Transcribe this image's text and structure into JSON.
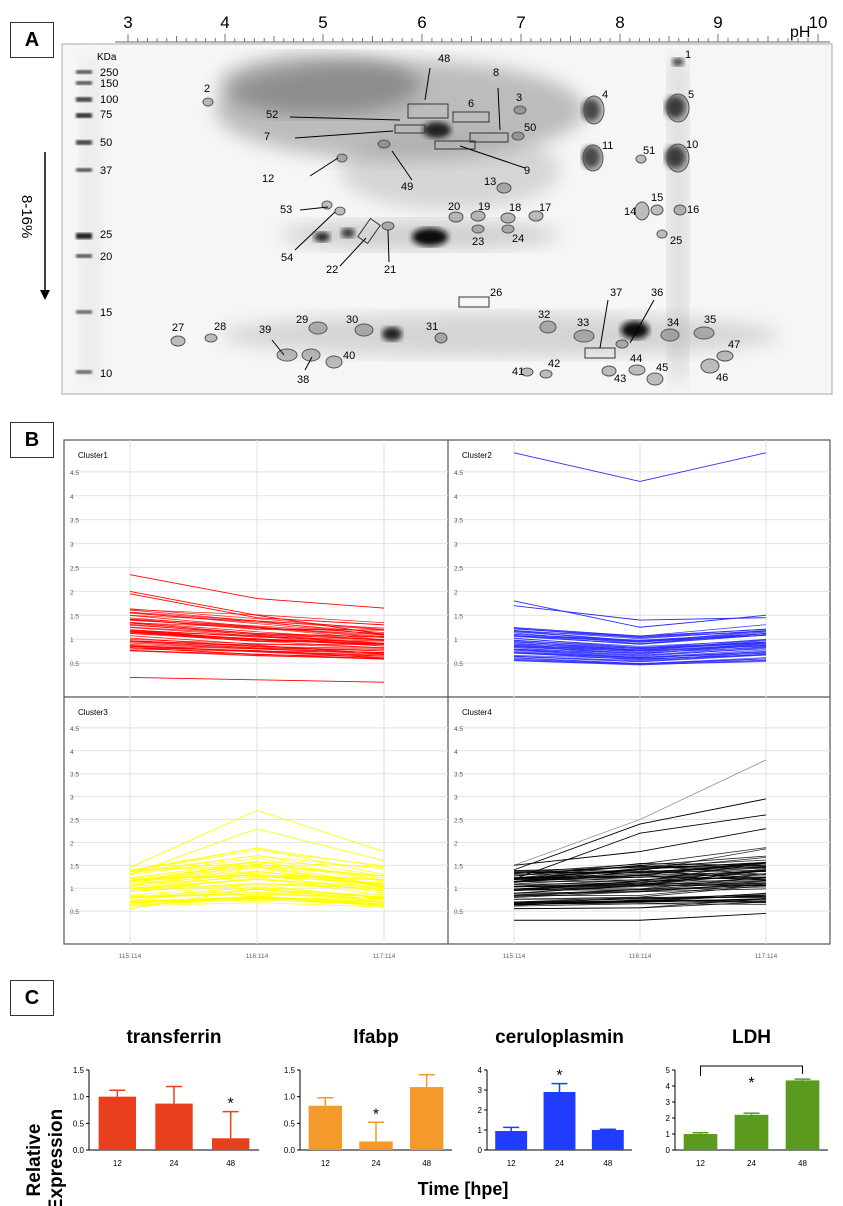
{
  "panels": {
    "a": "A",
    "b": "B",
    "c": "C"
  },
  "gel": {
    "ph_label": "pH",
    "ph_ticks": [
      "3",
      "4",
      "5",
      "6",
      "7",
      "8",
      "9",
      "10"
    ],
    "kda_label": "KDa",
    "kda_markers": [
      "250",
      "150",
      "100",
      "75",
      "50",
      "37",
      "25",
      "20",
      "15",
      "10"
    ],
    "gradient_label": "8-16%",
    "spot_labels": [
      "1",
      "2",
      "3",
      "4",
      "5",
      "6",
      "7",
      "8",
      "9",
      "10",
      "11",
      "12",
      "13",
      "14",
      "15",
      "16",
      "17",
      "18",
      "19",
      "20",
      "21",
      "22",
      "23",
      "24",
      "25",
      "26",
      "27",
      "28",
      "29",
      "30",
      "31",
      "32",
      "33",
      "34",
      "35",
      "36",
      "37",
      "38",
      "39",
      "40",
      "41",
      "42",
      "43",
      "44",
      "45",
      "46",
      "47",
      "48",
      "49",
      "50",
      "51",
      "52",
      "53",
      "54"
    ]
  },
  "clusters": {
    "names": [
      "Cluster1",
      "Cluster2",
      "Cluster3",
      "Cluster4"
    ],
    "y_ticks": [
      "0.5",
      "1",
      "1.5",
      "2",
      "2.5",
      "3",
      "3.5",
      "4",
      "4.5"
    ],
    "x_ticks": [
      "115:114",
      "116:114",
      "117:114"
    ],
    "colors": [
      "#ff0000",
      "#2b2bff",
      "#ffff00",
      "#000000"
    ]
  },
  "chart_data": [
    {
      "type": "bar",
      "title": "transferrin",
      "categories": [
        "12",
        "24",
        "48"
      ],
      "values": [
        1.0,
        0.87,
        0.22
      ],
      "error": [
        0.12,
        0.32,
        0.5
      ],
      "ylim": [
        0,
        1.5
      ],
      "yticks": [
        "0.0",
        "0.5",
        "1.0",
        "1.5"
      ],
      "significant": [
        "",
        "",
        "*"
      ],
      "color": "#e8401c"
    },
    {
      "type": "bar",
      "title": "lfabp",
      "categories": [
        "12",
        "24",
        "48"
      ],
      "values": [
        0.83,
        0.16,
        1.18
      ],
      "error": [
        0.15,
        0.36,
        0.23
      ],
      "ylim": [
        0,
        1.5
      ],
      "yticks": [
        "0.0",
        "0.5",
        "1.0",
        "1.5"
      ],
      "significant": [
        "",
        "*",
        ""
      ],
      "color": "#f39a2b"
    },
    {
      "type": "bar",
      "title": "ceruloplasmin",
      "categories": [
        "12",
        "24",
        "48"
      ],
      "values": [
        0.95,
        2.9,
        1.0
      ],
      "error": [
        0.18,
        0.42,
        0.04
      ],
      "ylim": [
        0,
        4
      ],
      "yticks": [
        "0",
        "1",
        "2",
        "3",
        "4"
      ],
      "significant": [
        "",
        "*",
        ""
      ],
      "color": "#1f3cff"
    },
    {
      "type": "bar",
      "title": "LDH",
      "categories": [
        "12",
        "24",
        "48"
      ],
      "values": [
        1.0,
        2.2,
        4.35
      ],
      "error": [
        0.08,
        0.1,
        0.08
      ],
      "ylim": [
        0,
        5
      ],
      "yticks": [
        "0",
        "1",
        "2",
        "3",
        "4",
        "5"
      ],
      "significant": [
        "",
        "*",
        ""
      ],
      "bracket": true,
      "color": "#5a9a1e"
    }
  ],
  "axis": {
    "ylabel_line1": "Relative",
    "ylabel_line2": "Expression",
    "xlabel": "Time [hpe]"
  }
}
